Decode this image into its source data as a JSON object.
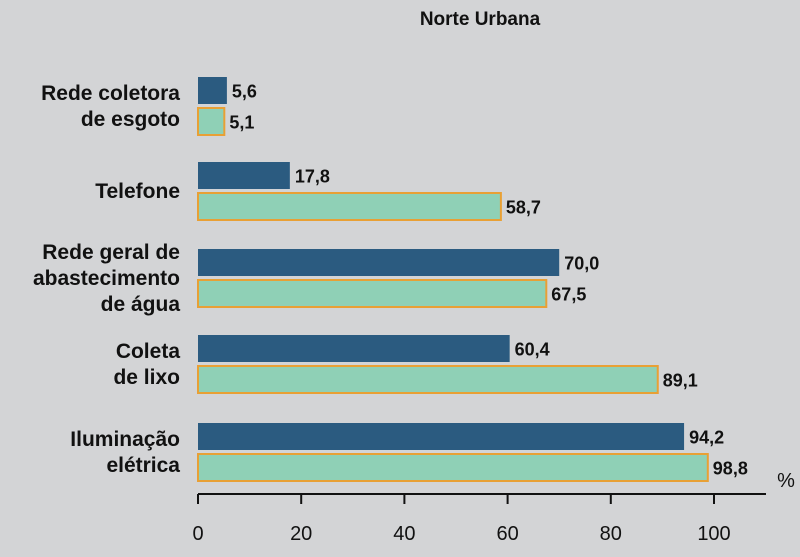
{
  "chart_data": {
    "type": "bar",
    "orientation": "horizontal",
    "title": "Norte Urbana",
    "categories": [
      [
        "Rede coletora",
        "de esgoto"
      ],
      [
        "Telefone"
      ],
      [
        "Rede geral de",
        "abastecimento",
        "de água"
      ],
      [
        "Coleta",
        "de lixo"
      ],
      [
        "Iluminação",
        "elétrica"
      ]
    ],
    "series": [
      {
        "color": "#2b5b80",
        "values": [
          5.6,
          17.8,
          70.0,
          60.4,
          94.2
        ]
      },
      {
        "color": "#8fd0b6",
        "border": "#e8a035",
        "values": [
          5.1,
          58.7,
          67.5,
          89.1,
          98.8
        ]
      }
    ],
    "value_labels": [
      [
        "5,6",
        "17,8",
        "70,0",
        "60,4",
        "94,2"
      ],
      [
        "5,1",
        "58,7",
        "67,5",
        "89,1",
        "98,8"
      ]
    ],
    "xlim": [
      0,
      100
    ],
    "xticks": [
      0,
      20,
      40,
      60,
      80,
      100
    ],
    "unit_label": "%",
    "grid": false,
    "background": "#d3d4d6"
  }
}
